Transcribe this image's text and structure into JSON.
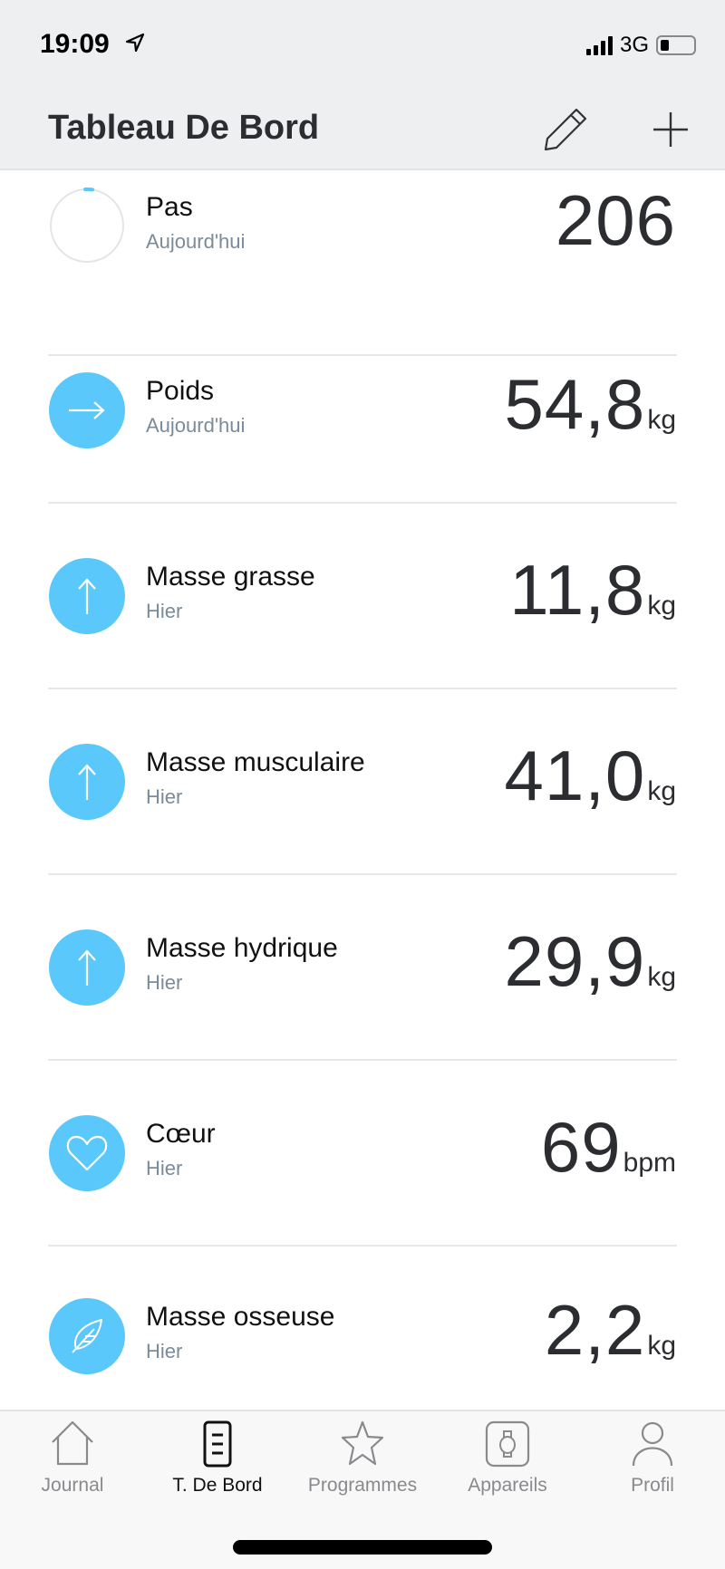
{
  "status_bar": {
    "time": "19:09",
    "network": "3G",
    "battery_percent": 15
  },
  "header": {
    "title": "Tableau De Bord",
    "edit_icon": "pencil-icon",
    "add_icon": "plus-icon"
  },
  "accent_color": "#5ac8fa",
  "metrics": [
    {
      "label": "Pas",
      "when": "Aujourd'hui",
      "value": "206",
      "unit": "",
      "icon": "progress-ring-icon",
      "progress": 0.02
    },
    {
      "label": "Poids",
      "when": "Aujourd'hui",
      "value": "54,8",
      "unit": "kg",
      "icon": "arrow-right-icon"
    },
    {
      "label": "Masse grasse",
      "when": "Hier",
      "value": "11,8",
      "unit": "kg",
      "icon": "arrow-up-icon"
    },
    {
      "label": "Masse musculaire",
      "when": "Hier",
      "value": "41,0",
      "unit": "kg",
      "icon": "arrow-up-icon"
    },
    {
      "label": "Masse hydrique",
      "when": "Hier",
      "value": "29,9",
      "unit": "kg",
      "icon": "arrow-up-icon"
    },
    {
      "label": "Cœur",
      "when": "Hier",
      "value": "69",
      "unit": "bpm",
      "icon": "heart-icon"
    },
    {
      "label": "Masse osseuse",
      "when": "Hier",
      "value": "2,2",
      "unit": "kg",
      "icon": "feather-icon"
    }
  ],
  "tabs": [
    {
      "label": "Journal",
      "icon": "home-icon"
    },
    {
      "label": "T. De Bord",
      "icon": "dashboard-icon",
      "active": true
    },
    {
      "label": "Programmes",
      "icon": "star-icon"
    },
    {
      "label": "Appareils",
      "icon": "watch-icon"
    },
    {
      "label": "Profil",
      "icon": "person-icon"
    }
  ]
}
